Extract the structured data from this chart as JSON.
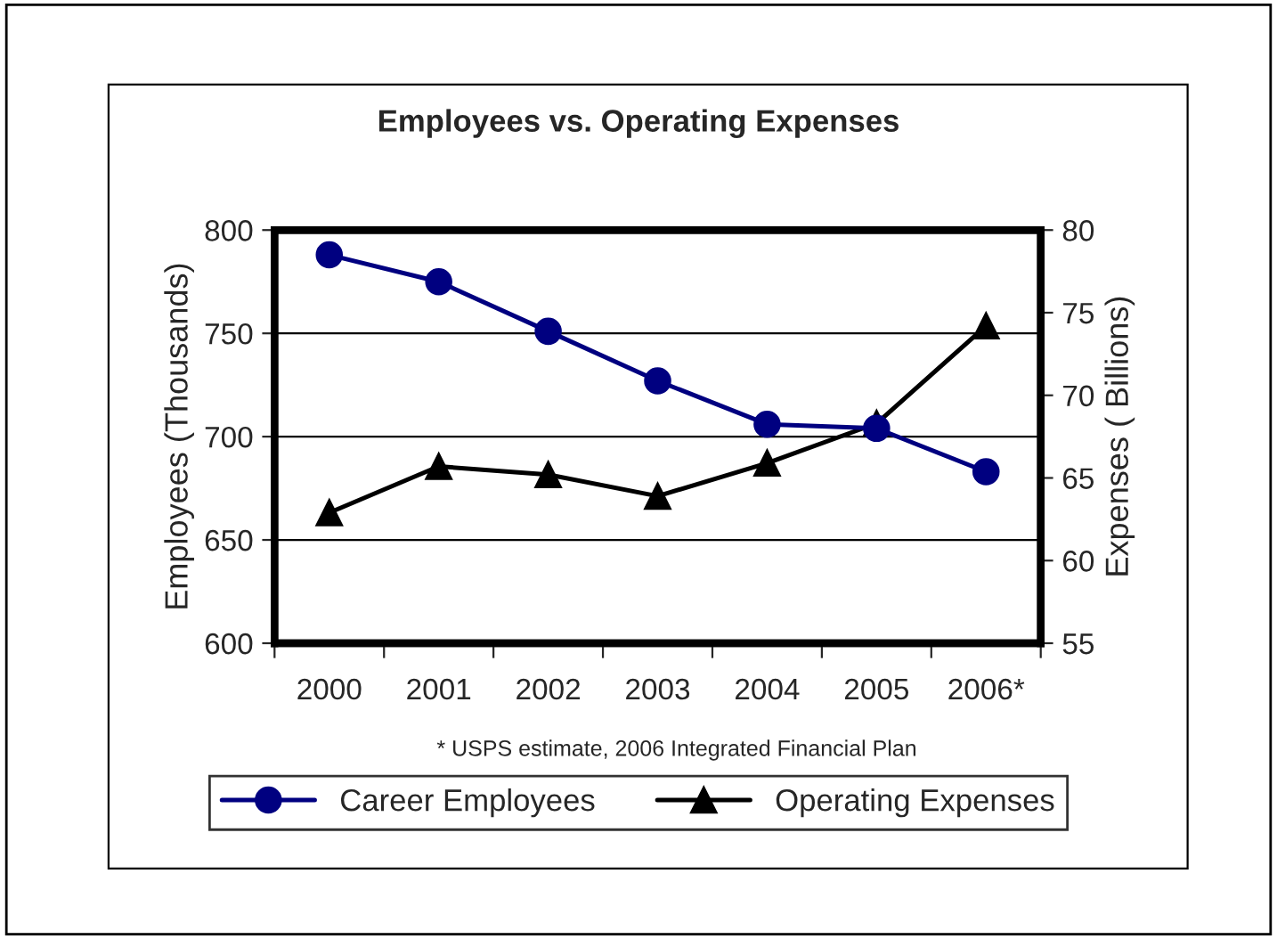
{
  "chart_data": {
    "type": "line",
    "title": "Employees vs. Operating Expenses",
    "categories": [
      "2000",
      "2001",
      "2002",
      "2003",
      "2004",
      "2005",
      "2006*"
    ],
    "series": [
      {
        "name": "Career Employees",
        "color": "#000080",
        "marker": "circle",
        "values": [
          788,
          775,
          751,
          727,
          706,
          704,
          683
        ]
      },
      {
        "name": "Operating Expenses",
        "color": "#000000",
        "marker": "triangle",
        "axis": "y2",
        "values": [
          62.9,
          65.7,
          65.2,
          63.9,
          65.9,
          68.3,
          74.2
        ]
      }
    ],
    "ylabel": "Employees (Thousands)",
    "y2label": "Expenses ( Billions)",
    "ylim": [
      600,
      800
    ],
    "yticks": [
      600,
      650,
      700,
      750,
      800
    ],
    "y2lim": [
      55,
      80
    ],
    "y2ticks": [
      55,
      60,
      65,
      70,
      75,
      80
    ],
    "grid": "y",
    "legend": "bottom",
    "line_style": "solid",
    "annotations": [
      "* USPS estimate, 2006 Integrated Financial Plan"
    ]
  }
}
